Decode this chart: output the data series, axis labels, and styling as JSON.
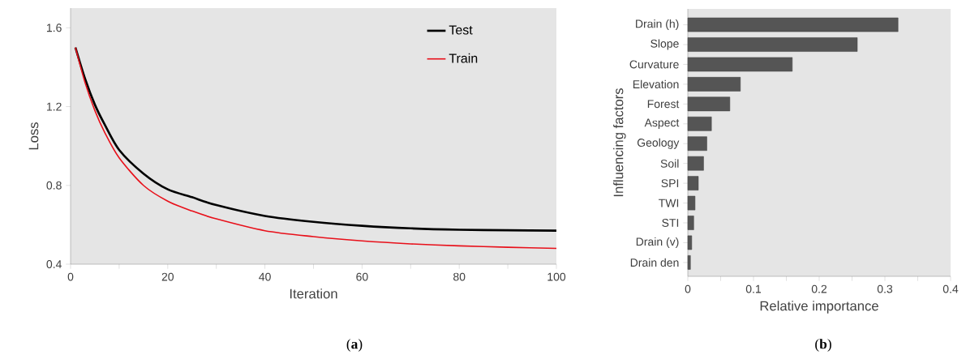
{
  "chart_data": [
    {
      "type": "line",
      "xlabel": "Iteration",
      "ylabel": "Loss",
      "x": [
        1,
        3,
        5,
        7,
        10,
        15,
        20,
        25,
        30,
        40,
        50,
        60,
        70,
        80,
        90,
        100
      ],
      "series": [
        {
          "name": "Test",
          "color": "#000000",
          "values": [
            1.5,
            1.34,
            1.21,
            1.11,
            0.98,
            0.86,
            0.78,
            0.74,
            0.7,
            0.645,
            0.615,
            0.595,
            0.582,
            0.575,
            0.572,
            0.57
          ]
        },
        {
          "name": "Train",
          "color": "#e8101a",
          "values": [
            1.5,
            1.32,
            1.18,
            1.07,
            0.94,
            0.8,
            0.72,
            0.67,
            0.63,
            0.57,
            0.54,
            0.518,
            0.503,
            0.493,
            0.486,
            0.48
          ]
        }
      ],
      "xlim": [
        0,
        100
      ],
      "ylim": [
        0.4,
        1.7
      ],
      "xticks": [
        0,
        {
          "value": 10,
          "label": null
        },
        20,
        {
          "value": 30,
          "label": null
        },
        40,
        {
          "value": 50,
          "label": null
        },
        60,
        {
          "value": 70,
          "label": null
        },
        80,
        {
          "value": 90,
          "label": null
        },
        100
      ],
      "yticks": [
        0.4,
        0.8,
        1.2,
        1.6
      ],
      "legend": "top right",
      "annotations": [
        "(**a**)"
      ]
    },
    {
      "type": "bar",
      "orientation": "horizontal",
      "xlabel": "Relative importance",
      "ylabel": "Influencing factors",
      "categories": [
        "Drain (h)",
        "Slope",
        "Curvature",
        "Elevation",
        "Forest",
        "Aspect",
        "Geology",
        "Soil",
        "SPI",
        "TWI",
        "STI",
        "Drain (v)",
        "Drain den"
      ],
      "values": [
        0.32,
        0.258,
        0.159,
        0.08,
        0.064,
        0.036,
        0.029,
        0.024,
        0.016,
        0.011,
        0.009,
        0.006,
        0.004
      ],
      "color": "#555555",
      "xlim": [
        0,
        0.4
      ],
      "xticks": [
        0,
        {
          "value": 0.05,
          "label": null
        },
        0.1,
        {
          "value": 0.15,
          "label": null
        },
        0.2,
        {
          "value": 0.25,
          "label": null
        },
        0.3,
        {
          "value": 0.35,
          "label": null
        },
        0.4
      ],
      "annotations": [
        "(**b**)"
      ]
    }
  ]
}
